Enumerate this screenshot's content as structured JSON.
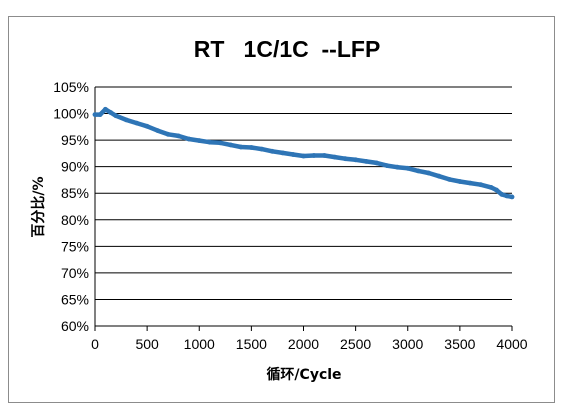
{
  "chart_data": {
    "type": "line",
    "title": "RT   1C/1C  --LFP",
    "xlabel": "循环/Cycle",
    "ylabel": "百分比/%",
    "xlim": [
      0,
      4000
    ],
    "ylim": [
      60,
      105
    ],
    "x_ticks": [
      0,
      500,
      1000,
      1500,
      2000,
      2500,
      3000,
      3500,
      4000
    ],
    "y_ticks": [
      60,
      65,
      70,
      75,
      80,
      85,
      90,
      95,
      100,
      105
    ],
    "y_tick_labels": [
      "60%",
      "65%",
      "70%",
      "75%",
      "80%",
      "85%",
      "90%",
      "95%",
      "100%",
      "105%"
    ],
    "grid": "horizontal",
    "legend": "none",
    "series": [
      {
        "color": "#2e75b6",
        "x": [
          0,
          50,
          100,
          150,
          200,
          300,
          400,
          500,
          600,
          700,
          800,
          900,
          1000,
          1100,
          1200,
          1300,
          1400,
          1500,
          1600,
          1700,
          1800,
          1900,
          2000,
          2100,
          2200,
          2300,
          2400,
          2500,
          2600,
          2700,
          2800,
          2900,
          3000,
          3100,
          3200,
          3300,
          3400,
          3500,
          3600,
          3700,
          3800,
          3850,
          3900,
          3950,
          4000
        ],
        "y": [
          99.8,
          99.8,
          100.8,
          100.2,
          99.6,
          98.8,
          98.2,
          97.6,
          96.8,
          96.1,
          95.8,
          95.2,
          94.9,
          94.6,
          94.5,
          94.1,
          93.7,
          93.6,
          93.3,
          92.9,
          92.6,
          92.3,
          92.0,
          92.1,
          92.1,
          91.8,
          91.5,
          91.3,
          91.0,
          90.7,
          90.2,
          89.9,
          89.7,
          89.2,
          88.8,
          88.2,
          87.6,
          87.2,
          86.9,
          86.6,
          86.1,
          85.6,
          84.8,
          84.5,
          84.3
        ]
      }
    ]
  }
}
